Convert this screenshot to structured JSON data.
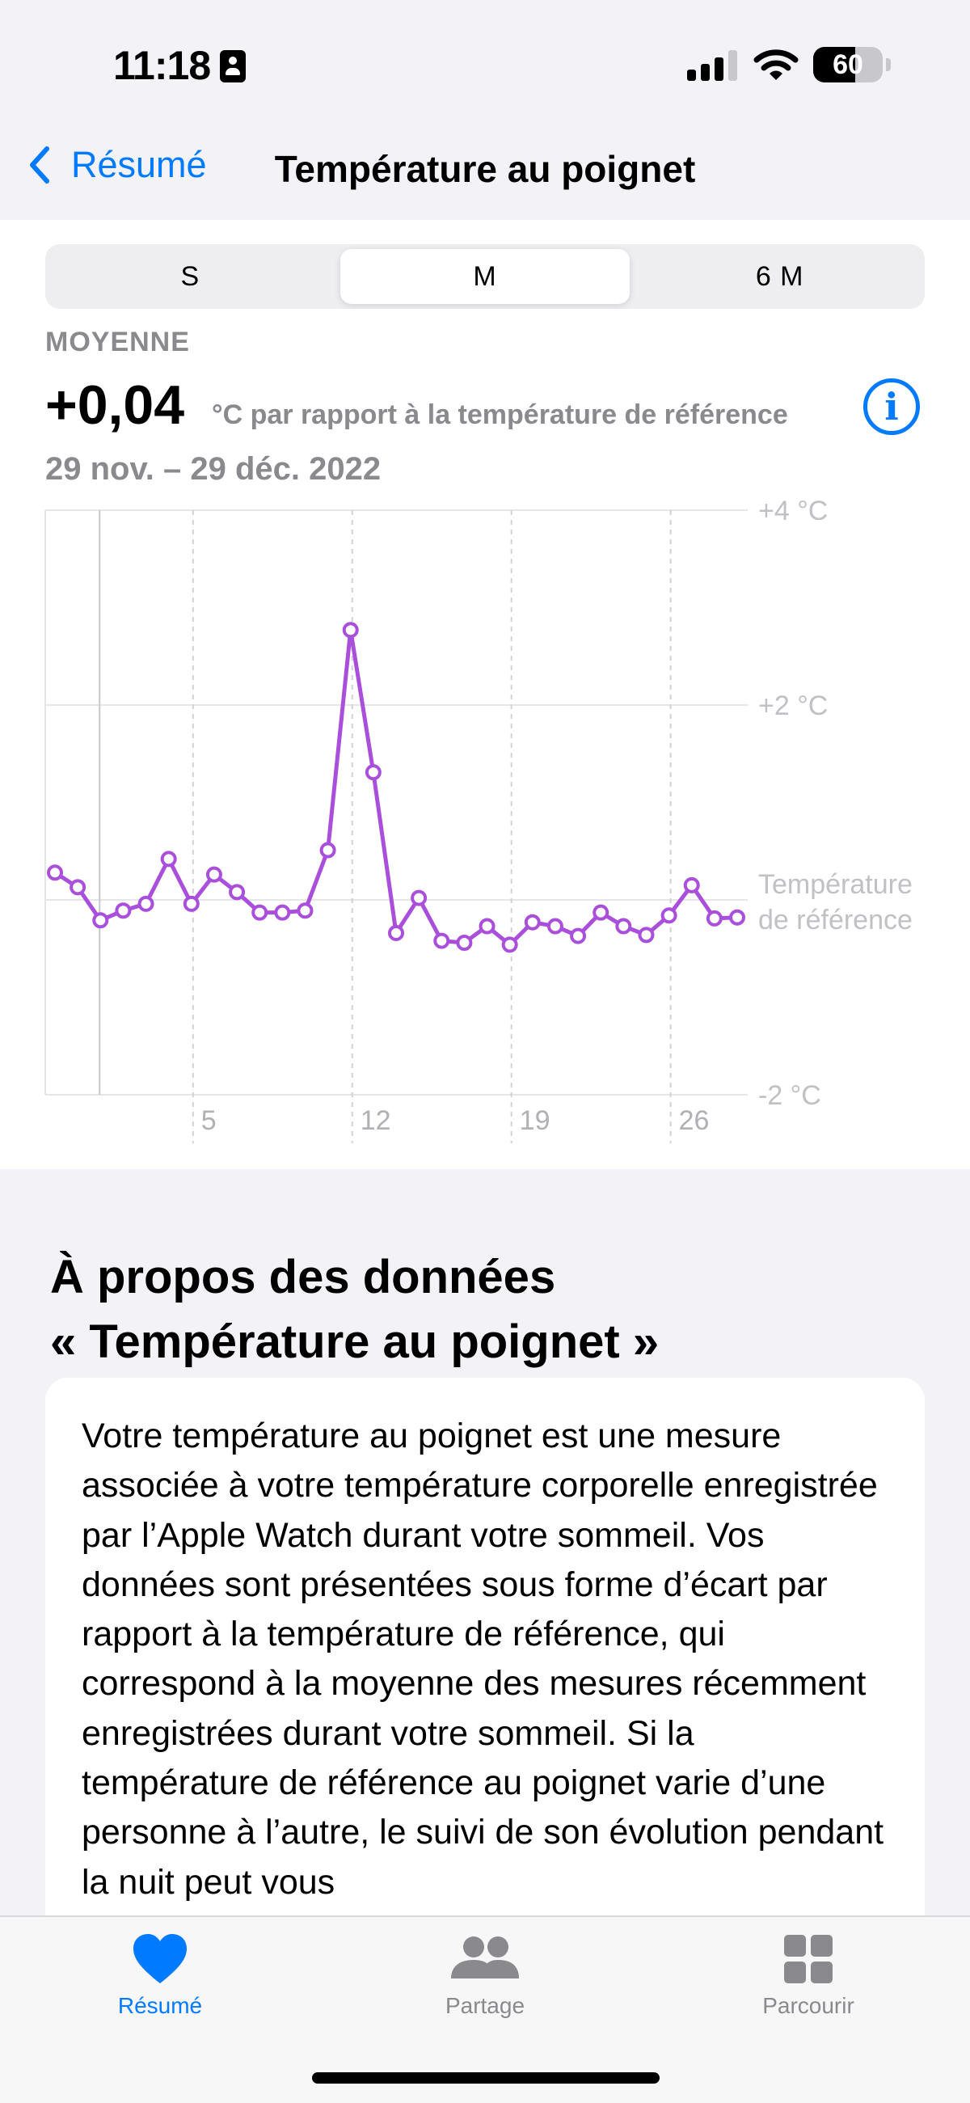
{
  "status_bar": {
    "time": "11:18",
    "battery": "60",
    "battery_level": 0.6
  },
  "nav": {
    "back_label": "Résumé",
    "title": "Température au poignet"
  },
  "segments": [
    {
      "label": "S",
      "active": false
    },
    {
      "label": "M",
      "active": true
    },
    {
      "label": "6 M",
      "active": false
    }
  ],
  "summary": {
    "label": "MOYENNE",
    "value": "+0,04",
    "unit": "°C par rapport à la température de référence",
    "date_range": "29 nov. – 29 déc. 2022"
  },
  "chart_data": {
    "type": "line",
    "x_tick_labels": [
      "5",
      "12",
      "19",
      "26"
    ],
    "y_tick_labels": [
      "+4 °C",
      "+2 °C",
      "Température de référence",
      "-2 °C"
    ],
    "ylim": [
      -2,
      4
    ],
    "baseline_label": [
      "Température",
      "de référence"
    ],
    "color": "#a94fdb",
    "series": [
      {
        "values": [
          0.28,
          0.13,
          -0.21,
          -0.11,
          -0.04,
          0.42,
          -0.04,
          0.26,
          0.08,
          -0.13,
          -0.13,
          -0.11,
          0.51,
          2.77,
          1.31,
          -0.34,
          0.02,
          -0.42,
          -0.44,
          -0.27,
          -0.46,
          -0.23,
          -0.27,
          -0.37,
          -0.13,
          -0.27,
          -0.36,
          -0.16,
          0.15,
          -0.19,
          -0.18
        ]
      }
    ]
  },
  "about": {
    "title_line1": "À propos des données",
    "title_line2": "« Température au poignet »",
    "body": "Votre température au poignet est une mesure associée à votre température corporelle enregistrée par l’Apple Watch durant votre sommeil. Vos données sont présentées sous forme d’écart par rapport à la température de référence, qui correspond à la moyenne des mesures récemment enregistrées durant votre sommeil. Si la température de référence au poignet varie d’une personne à l’autre, le suivi de son évolution pendant la nuit peut vous"
  },
  "tabbar": {
    "items": [
      {
        "label": "Résumé",
        "icon": "heart-icon",
        "active": true
      },
      {
        "label": "Partage",
        "icon": "people-icon",
        "active": false
      },
      {
        "label": "Parcourir",
        "icon": "grid-icon",
        "active": false
      }
    ]
  },
  "colors": {
    "accent": "#007aff",
    "chart_line": "#a94fdb",
    "secondary_text": "#8a8a8e"
  }
}
